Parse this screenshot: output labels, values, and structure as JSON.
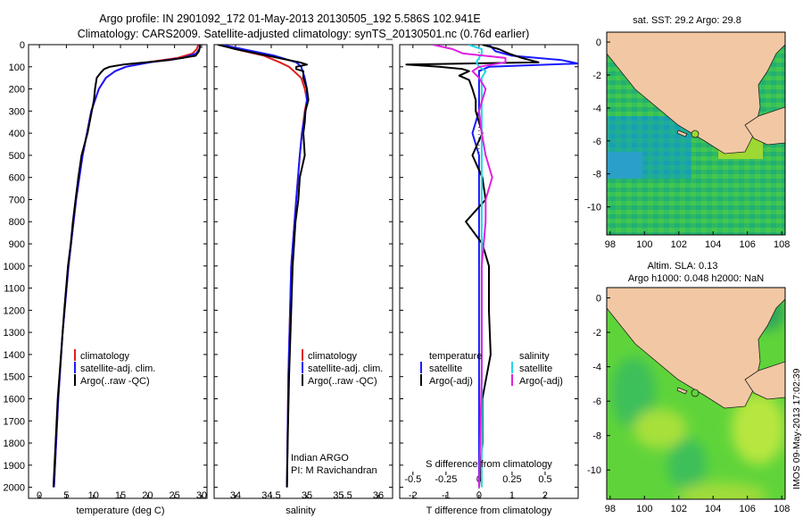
{
  "header": {
    "line1": "Argo profile: IN 2901092_172 01-May-2013 20130505_192 5.586S 102.941E",
    "line2": "Climatology: CARS2009. Satellite-adjusted climatology: synTS_20130501.nc (0.76d earlier)"
  },
  "colors": {
    "climatology": "#e0201e",
    "satellite": "#1a1aff",
    "argo": "#000000",
    "sat_salinity": "#22d8e8",
    "argo_adj_salinity": "#e020e0",
    "land": "#f2c8a4"
  },
  "chart_data": [
    {
      "type": "line",
      "name": "temperature-profile",
      "xlabel": "temperature (deg C)",
      "ylabel": "",
      "xlim": [
        -2,
        31
      ],
      "ylim": [
        2050,
        0
      ],
      "xticks": [
        0,
        5,
        10,
        15,
        20,
        25,
        30
      ],
      "yticks": [
        0,
        100,
        200,
        300,
        400,
        500,
        600,
        700,
        800,
        900,
        1000,
        1100,
        1200,
        1300,
        1400,
        1500,
        1600,
        1700,
        1800,
        1900,
        2000
      ],
      "legend": [
        "climatology",
        "satellite-adj. clim.",
        "Argo(..raw -QC)"
      ],
      "legend_position": "lower-center",
      "series": [
        {
          "name": "climatology",
          "color": "#e0201e",
          "depth": [
            0,
            20,
            40,
            60,
            80,
            100,
            120,
            150,
            200,
            300,
            400,
            500,
            700,
            1000,
            1300,
            1600,
            2000
          ],
          "values": [
            29.4,
            29.1,
            28.3,
            25.5,
            20.0,
            16.0,
            14.0,
            12.3,
            11.0,
            9.6,
            8.8,
            8.0,
            6.8,
            5.4,
            4.3,
            3.5,
            2.7
          ]
        },
        {
          "name": "satellite-adj. clim.",
          "color": "#1a1aff",
          "depth": [
            0,
            20,
            40,
            60,
            80,
            100,
            120,
            150,
            200,
            300,
            400,
            500,
            700,
            1000,
            1300,
            1600,
            2000
          ],
          "values": [
            29.7,
            29.6,
            29.0,
            26.5,
            20.5,
            16.0,
            14.0,
            12.3,
            11.0,
            9.6,
            8.8,
            8.0,
            6.8,
            5.4,
            4.3,
            3.5,
            2.7
          ]
        },
        {
          "name": "Argo(..raw -QC)",
          "color": "#000000",
          "depth": [
            0,
            10,
            30,
            50,
            70,
            90,
            100,
            110,
            125,
            150,
            200,
            250,
            300,
            400,
            500,
            600,
            700,
            800,
            900,
            1000,
            1200,
            1400,
            1600,
            1800,
            2000
          ],
          "values": [
            29.6,
            29.7,
            29.5,
            28.9,
            24.0,
            15.5,
            13.0,
            12.0,
            11.4,
            10.6,
            10.3,
            10.1,
            9.7,
            8.9,
            7.8,
            7.2,
            6.7,
            6.2,
            5.8,
            5.3,
            4.6,
            4.0,
            3.4,
            3.0,
            2.6
          ]
        }
      ]
    },
    {
      "type": "line",
      "name": "salinity-profile",
      "xlabel": "salinity",
      "ylabel": "",
      "xlim": [
        33.7,
        36.2
      ],
      "ylim": [
        2050,
        0
      ],
      "xticks": [
        34,
        34.5,
        35,
        35.5,
        36
      ],
      "legend": [
        "climatology",
        "satellite-adj. clim.",
        "Argo(..raw -QC)"
      ],
      "legend_position": "lower-center",
      "annotations": [
        "Indian ARGO",
        "PI: M Ravichandran"
      ],
      "series": [
        {
          "name": "climatology",
          "color": "#e0201e",
          "depth": [
            0,
            20,
            50,
            80,
            100,
            150,
            200,
            250,
            300,
            400,
            500,
            700,
            1000,
            1500,
            2000
          ],
          "values": [
            33.8,
            34.0,
            34.4,
            34.62,
            34.75,
            34.92,
            34.97,
            35.0,
            34.97,
            34.93,
            34.9,
            34.85,
            34.78,
            34.74,
            34.72
          ]
        },
        {
          "name": "satellite-adj. clim.",
          "color": "#1a1aff",
          "depth": [
            0,
            20,
            50,
            80,
            100,
            150,
            200,
            250,
            300,
            400,
            500,
            700,
            1000,
            1500,
            2000
          ],
          "values": [
            33.8,
            34.1,
            34.55,
            34.85,
            34.92,
            34.97,
            35.0,
            35.0,
            34.98,
            34.93,
            34.9,
            34.85,
            34.78,
            34.74,
            34.72
          ]
        },
        {
          "name": "Argo(..raw -QC)",
          "color": "#000000",
          "depth": [
            0,
            20,
            40,
            60,
            80,
            90,
            100,
            110,
            120,
            150,
            200,
            250,
            300,
            350,
            400,
            500,
            600,
            700,
            800,
            900,
            1000,
            1200,
            1500,
            1800,
            2000
          ],
          "values": [
            33.75,
            34.0,
            34.3,
            34.6,
            34.9,
            35.0,
            34.85,
            34.85,
            34.95,
            34.95,
            35.0,
            35.02,
            34.98,
            34.97,
            34.95,
            34.97,
            34.9,
            34.88,
            34.84,
            34.82,
            34.8,
            34.78,
            34.75,
            34.73,
            34.72
          ]
        }
      ]
    },
    {
      "type": "line",
      "name": "difference-profile",
      "xlabel": "T difference from climatology",
      "xlabel_top": "S difference from climatology",
      "xlim_T": [
        -2.4,
        3.0
      ],
      "ylim": [
        2050,
        0
      ],
      "xticks_T": [
        -2,
        -1,
        0,
        1,
        2
      ],
      "xticks_S": [
        -0.5,
        -0.25,
        0,
        0.25,
        0.5
      ],
      "xtick_labels_S": [
        "-0.5",
        "-0.25",
        "0",
        "0.25",
        "0.5"
      ],
      "legend_temperature_title": "temperature",
      "legend_salinity_title": "salinity",
      "legend_temperature": [
        "satellite",
        "Argo(-adj)"
      ],
      "legend_salinity": [
        "satellite",
        "Argo(-adj)"
      ],
      "legend_position": "lower-center",
      "series": [
        {
          "name": "temperature satellite",
          "color": "#1a1aff",
          "depth": [
            0,
            30,
            50,
            70,
            85,
            100,
            120,
            150,
            200,
            300,
            400,
            500,
            800,
            1200,
            2000
          ],
          "values": [
            0.3,
            0.5,
            1.0,
            2.5,
            3.0,
            0.3,
            0.0,
            0.0,
            0.0,
            0.0,
            -0.2,
            0.0,
            0.0,
            0.0,
            0.0
          ]
        },
        {
          "name": "temperature Argo(-adj)",
          "color": "#000000",
          "depth": [
            0,
            20,
            40,
            60,
            80,
            90,
            100,
            110,
            120,
            140,
            160,
            200,
            250,
            300,
            400,
            500,
            600,
            700,
            800,
            900,
            1000,
            1200,
            1400,
            1600,
            1800,
            2000
          ],
          "values": [
            0.1,
            0.6,
            0.9,
            1.3,
            1.8,
            -2.2,
            -1.2,
            -0.5,
            -0.3,
            -0.6,
            -0.3,
            -0.2,
            -0.1,
            -0.1,
            0.1,
            -0.2,
            0.1,
            0.2,
            -0.4,
            0.1,
            0.3,
            0.3,
            0.35,
            0.1,
            0.1,
            0.0
          ]
        },
        {
          "name": "salinity satellite",
          "color": "#22d8e8",
          "depth": [
            0,
            20,
            40,
            60,
            80,
            100,
            120,
            150,
            200,
            300,
            500,
            800,
            1200,
            1600,
            2000
          ],
          "values": [
            -0.08,
            0.02,
            0.02,
            0.0,
            -0.02,
            0.0,
            0.05,
            0.02,
            0.02,
            0.02,
            0.02,
            0.02,
            0.02,
            0.02,
            0.02
          ]
        },
        {
          "name": "salinity Argo(-adj)",
          "color": "#e020e0",
          "depth": [
            0,
            20,
            40,
            60,
            80,
            100,
            120,
            150,
            200,
            300,
            400,
            500,
            600,
            700,
            800,
            1000,
            1500,
            2000
          ],
          "values": [
            -0.35,
            -0.2,
            -0.12,
            0.2,
            0.2,
            0.0,
            -0.05,
            0.0,
            0.05,
            0.0,
            0.02,
            0.05,
            0.1,
            0.05,
            0.05,
            0.02,
            0.02,
            0.0
          ]
        }
      ]
    },
    {
      "type": "heatmap",
      "name": "sst-map",
      "title": "sat. SST: 29.2 Argo: 29.8",
      "xlim": [
        97.8,
        108.2
      ],
      "ylim": [
        -11.7,
        0.6
      ],
      "xticks": [
        98,
        100,
        102,
        104,
        106,
        108
      ],
      "yticks": [
        0,
        -2,
        -4,
        -6,
        -8,
        -10
      ],
      "float_position": [
        102.94,
        -5.59
      ]
    },
    {
      "type": "heatmap",
      "name": "sla-map",
      "title": "Altim. SLA: 0.13",
      "subtitle": "Argo h1000: 0.048 h2000: NaN",
      "xlim": [
        97.8,
        108.2
      ],
      "ylim": [
        -11.7,
        0.6
      ],
      "xticks": [
        98,
        100,
        102,
        104,
        106,
        108
      ],
      "yticks": [
        0,
        -2,
        -4,
        -6,
        -8,
        -10
      ],
      "float_position": [
        102.94,
        -5.59
      ]
    }
  ],
  "watermark": "IMOS 09-May-2013 17:02:39"
}
